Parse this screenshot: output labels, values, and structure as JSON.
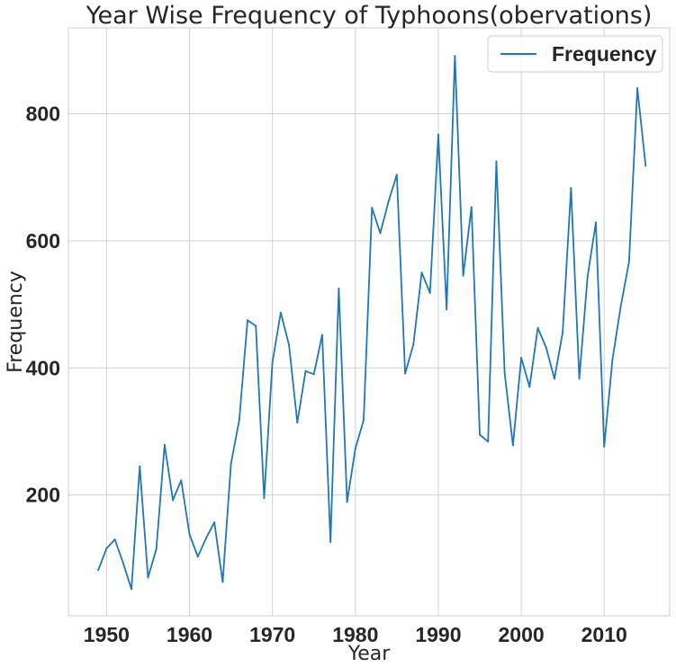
{
  "chart_data": {
    "type": "line",
    "title": "Year Wise Frequency of Typhoons(obervations)",
    "xlabel": "Year",
    "ylabel": "Frequency",
    "xlim": [
      1945.4,
      2017.9
    ],
    "ylim": [
      10,
      935
    ],
    "x_ticks": [
      1950,
      1960,
      1970,
      1980,
      1990,
      2000,
      2010
    ],
    "y_ticks": [
      200,
      400,
      600,
      800
    ],
    "grid": true,
    "legend_position": "top-right",
    "series": [
      {
        "name": "Frequency",
        "color": "#1f77b4",
        "x": [
          1949,
          1950,
          1951,
          1952,
          1953,
          1954,
          1955,
          1956,
          1957,
          1958,
          1959,
          1960,
          1961,
          1962,
          1963,
          1964,
          1965,
          1966,
          1967,
          1968,
          1969,
          1970,
          1971,
          1972,
          1973,
          1974,
          1975,
          1976,
          1977,
          1978,
          1979,
          1980,
          1981,
          1982,
          1983,
          1984,
          1985,
          1986,
          1987,
          1988,
          1989,
          1990,
          1991,
          1992,
          1993,
          1994,
          1995,
          1996,
          1997,
          1998,
          1999,
          2000,
          2001,
          2002,
          2003,
          2004,
          2005,
          2006,
          2007,
          2008,
          2009,
          2010,
          2011,
          2012,
          2013,
          2014,
          2015
        ],
        "y": [
          82,
          116,
          130,
          93,
          52,
          245,
          70,
          115,
          279,
          192,
          223,
          138,
          103,
          132,
          157,
          63,
          249,
          318,
          475,
          466,
          195,
          409,
          487,
          436,
          314,
          395,
          390,
          452,
          126,
          525,
          189,
          273,
          318,
          652,
          612,
          662,
          704,
          391,
          437,
          550,
          518,
          767,
          492,
          891,
          545,
          653,
          295,
          284,
          725,
          392,
          278,
          416,
          370,
          463,
          432,
          383,
          456,
          683,
          383,
          544,
          629,
          276,
          413,
          497,
          567,
          840,
          718
        ]
      }
    ]
  }
}
